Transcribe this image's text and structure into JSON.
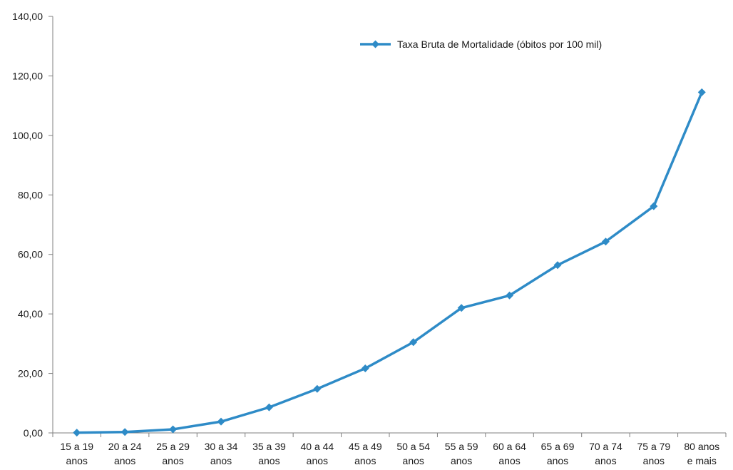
{
  "chart_data": {
    "type": "line",
    "title": "",
    "xlabel": "",
    "ylabel": "",
    "categories": [
      [
        "15 a 19",
        "anos"
      ],
      [
        "20 a 24",
        "anos"
      ],
      [
        "25 a 29",
        "anos"
      ],
      [
        "30 a 34",
        "anos"
      ],
      [
        "35 a 39",
        "anos"
      ],
      [
        "40 a 44",
        "anos"
      ],
      [
        "45 a 49",
        "anos"
      ],
      [
        "50 a 54",
        "anos"
      ],
      [
        "55 a 59",
        "anos"
      ],
      [
        "60 a 64",
        "anos"
      ],
      [
        "65 a 69",
        "anos"
      ],
      [
        "70 a 74",
        "anos"
      ],
      [
        "75 a 79",
        "anos"
      ],
      [
        "80 anos",
        "e mais"
      ]
    ],
    "series": [
      {
        "name": "Taxa Bruta de Mortalidade (óbitos por 100  mil)",
        "color": "#2e8bc7",
        "values": [
          0.1,
          0.3,
          1.2,
          3.8,
          8.6,
          14.8,
          21.7,
          30.5,
          42.0,
          46.2,
          56.4,
          64.3,
          76.2,
          114.5
        ]
      }
    ],
    "ylim": [
      0,
      140
    ],
    "yticks": [
      "0,00",
      "20,00",
      "40,00",
      "60,00",
      "80,00",
      "100,00",
      "120,00",
      "140,00"
    ],
    "grid": false,
    "legend": "top-right",
    "marker": "diamond"
  }
}
